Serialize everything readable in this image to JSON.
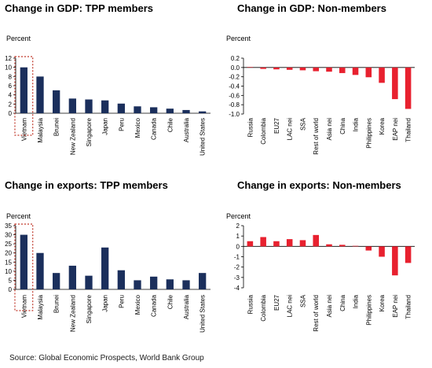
{
  "source": "Source: Global Economic Prospects, World Bank Group",
  "chart_data": [
    {
      "type": "bar",
      "title": "Change in GDP: TPP members",
      "ylabel": "Percent",
      "ylim": [
        0,
        12
      ],
      "yticks": [
        0,
        2,
        4,
        6,
        8,
        10,
        12
      ],
      "color": "#1b2f5c",
      "highlight": "Vietnam",
      "highlight_color": "#c0392b",
      "categories": [
        "Vietnam",
        "Malaysia",
        "Brunei",
        "New Zealand",
        "Singapore",
        "Japan",
        "Peru",
        "Mexico",
        "Canada",
        "Chile",
        "Australia",
        "United States"
      ],
      "values": [
        10.0,
        8.0,
        5.0,
        3.2,
        3.0,
        2.8,
        2.1,
        1.5,
        1.3,
        1.0,
        0.7,
        0.4
      ]
    },
    {
      "type": "bar",
      "title": "Change in GDP: Non-members",
      "ylabel": "Percent",
      "ylim": [
        -1.0,
        0.2
      ],
      "yticks": [
        0.2,
        0.0,
        -0.2,
        -0.4,
        -0.6,
        -0.8,
        -1.0
      ],
      "color": "#e8212f",
      "categories": [
        "Russia",
        "Colombia",
        "EU27",
        "LAC nei",
        "SSA",
        "Rest of world",
        "Asia nei",
        "China",
        "India",
        "Philippines",
        "Korea",
        "EAP nei",
        "Thailand"
      ],
      "values": [
        0.01,
        -0.03,
        -0.04,
        -0.05,
        -0.06,
        -0.08,
        -0.09,
        -0.12,
        -0.16,
        -0.21,
        -0.33,
        -0.68,
        -0.89
      ]
    },
    {
      "type": "bar",
      "title": "Change in exports: TPP members",
      "ylabel": "Percent",
      "ylim": [
        0,
        35
      ],
      "yticks": [
        0,
        5,
        10,
        15,
        20,
        25,
        30,
        35
      ],
      "color": "#1b2f5c",
      "highlight": "Vietnam",
      "highlight_color": "#c0392b",
      "categories": [
        "Vietnam",
        "Malaysia",
        "Brunei",
        "New Zealand",
        "Singapore",
        "Japan",
        "Peru",
        "Mexico",
        "Canada",
        "Chile",
        "Australia",
        "United States"
      ],
      "values": [
        30.0,
        20.0,
        9.0,
        13.0,
        7.5,
        23.0,
        10.5,
        5.0,
        7.0,
        5.5,
        5.0,
        9.0
      ]
    },
    {
      "type": "bar",
      "title": "Change in exports: Non-members",
      "ylabel": "Percent",
      "ylim": [
        -4,
        2
      ],
      "yticks": [
        2,
        1,
        0,
        -1,
        -2,
        -3,
        -4
      ],
      "color": "#e8212f",
      "categories": [
        "Russia",
        "Colombia",
        "EU27",
        "LAC nei",
        "SSA",
        "Rest of world",
        "Asia nei",
        "China",
        "India",
        "Philippines",
        "Korea",
        "EAP nei",
        "Thailand"
      ],
      "values": [
        0.5,
        0.9,
        0.5,
        0.7,
        0.6,
        1.1,
        0.2,
        0.15,
        0.05,
        -0.4,
        -1.0,
        -2.8,
        -1.6
      ]
    }
  ]
}
